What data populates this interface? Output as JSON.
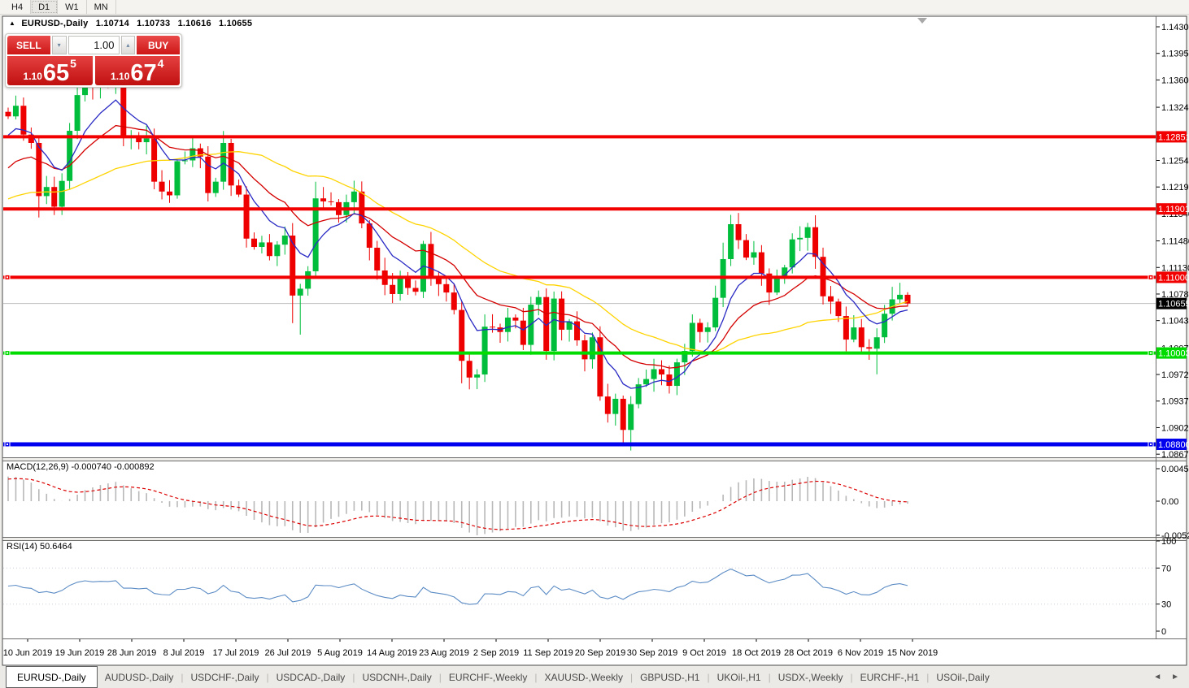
{
  "toolbar": {
    "timeframes": [
      {
        "label": "H4",
        "active": false
      },
      {
        "label": "D1",
        "active": true
      },
      {
        "label": "W1",
        "active": false
      },
      {
        "label": "MN",
        "active": false
      }
    ]
  },
  "header": {
    "symbol_title": "EURUSD-,Daily",
    "open": "1.10714",
    "high": "1.10733",
    "low": "1.10616",
    "close": "1.10655"
  },
  "trade_panel": {
    "sell_label": "SELL",
    "buy_label": "BUY",
    "volume": "1.00",
    "sell_price": {
      "prefix": "1.10",
      "big": "65",
      "sup": "5"
    },
    "buy_price": {
      "prefix": "1.10",
      "big": "67",
      "sup": "4"
    }
  },
  "price_axis": {
    "ticks": [
      "1.14300",
      "1.13950",
      "1.13600",
      "1.13240",
      "1.12540",
      "1.12190",
      "1.11840",
      "1.11480",
      "1.11130",
      "1.10780",
      "1.10430",
      "1.10070",
      "1.09720",
      "1.09370",
      "1.09020",
      "1.08670"
    ]
  },
  "time_axis": {
    "labels": [
      "10 Jun 2019",
      "19 Jun 2019",
      "28 Jun 2019",
      "8 Jul 2019",
      "17 Jul 2019",
      "26 Jul 2019",
      "5 Aug 2019",
      "14 Aug 2019",
      "23 Aug 2019",
      "2 Sep 2019",
      "11 Sep 2019",
      "20 Sep 2019",
      "30 Sep 2019",
      "9 Oct 2019",
      "18 Oct 2019",
      "28 Oct 2019",
      "6 Nov 2019",
      "15 Nov 2019"
    ]
  },
  "chart_data": {
    "type": "candlestick",
    "symbol": "EURUSD-",
    "timeframe": "Daily",
    "ylim": [
      1.0864,
      1.1443
    ],
    "current_price": {
      "value": 1.10655,
      "label": "1.10655"
    },
    "levels": [
      {
        "price": 1.12851,
        "label": "1.12851",
        "color": "#F20000",
        "thickness": 4,
        "handles": false
      },
      {
        "price": 1.11901,
        "label": "1.11901",
        "color": "#F20000",
        "thickness": 4,
        "handles": false
      },
      {
        "price": 1.11,
        "label": "1.11000",
        "color": "#F20000",
        "thickness": 4,
        "handles": true
      },
      {
        "price": 1.10003,
        "label": "1.10003",
        "color": "#00DC00",
        "thickness": 4,
        "handles": true
      },
      {
        "price": 1.088,
        "label": "1.08800",
        "color": "#0000EE",
        "thickness": 5,
        "handles": true
      }
    ],
    "closes": [
      1.1312,
      1.1326,
      1.1288,
      1.1277,
      1.1207,
      1.1219,
      1.1193,
      1.1227,
      1.1293,
      1.134,
      1.1362,
      1.135,
      1.1356,
      1.1355,
      1.1364,
      1.1285,
      1.1285,
      1.1278,
      1.1283,
      1.1226,
      1.1213,
      1.1208,
      1.1253,
      1.1254,
      1.127,
      1.1259,
      1.1211,
      1.1226,
      1.1277,
      1.1221,
      1.1209,
      1.1151,
      1.114,
      1.1146,
      1.1128,
      1.1143,
      1.1155,
      1.1076,
      1.1085,
      1.1108,
      1.1204,
      1.12,
      1.1199,
      1.1182,
      1.1199,
      1.1213,
      1.1171,
      1.1139,
      1.1109,
      1.109,
      1.1078,
      1.1099,
      1.1086,
      1.1081,
      1.1144,
      1.1101,
      1.1091,
      1.108,
      1.1057,
      1.099,
      1.0968,
      1.0972,
      1.1035,
      1.1034,
      1.1028,
      1.1047,
      1.1043,
      1.1011,
      1.1064,
      1.1074,
      1.1003,
      1.1072,
      1.1031,
      1.1042,
      1.1017,
      1.0992,
      1.1021,
      1.0943,
      1.092,
      1.094,
      1.0899,
      1.0933,
      1.0959,
      1.0966,
      1.0979,
      1.0972,
      1.0957,
      1.0988,
      1.1003,
      1.104,
      1.1028,
      1.1034,
      1.1073,
      1.1124,
      1.117,
      1.1149,
      1.1126,
      1.1133,
      1.1105,
      1.108,
      1.1099,
      1.1113,
      1.115,
      1.1152,
      1.1166,
      1.1127,
      1.1075,
      1.1068,
      1.1049,
      1.1018,
      1.1034,
      1.1008,
      1.1006,
      1.1021,
      1.1052,
      1.1071,
      1.1077,
      1.10655
    ]
  },
  "macd": {
    "name": "MACD(12,26,9)",
    "value_main": "-0.000740",
    "value_signal": "-0.000892",
    "ticks": [
      {
        "v": 0.004536,
        "label": "0.004536"
      },
      {
        "v": 0,
        "label": "0.00"
      },
      {
        "v": -0.005205,
        "label": "-0.005205"
      }
    ],
    "hist_color": "#B8B8B8",
    "signal_color": "#DC0000"
  },
  "rsi": {
    "name": "RSI(14)",
    "value": "50.6464",
    "ticks": [
      {
        "v": 100,
        "label": "100"
      },
      {
        "v": 70,
        "label": "70"
      },
      {
        "v": 30,
        "label": "30"
      },
      {
        "v": 0,
        "label": "0"
      }
    ],
    "levels": [
      70,
      30
    ],
    "color": "#5C8CC5"
  },
  "tabs": {
    "items": [
      {
        "label": "EURUSD-,Daily",
        "active": true
      },
      {
        "label": "AUDUSD-,Daily",
        "active": false
      },
      {
        "label": "USDCHF-,Daily",
        "active": false
      },
      {
        "label": "USDCAD-,Daily",
        "active": false
      },
      {
        "label": "USDCNH-,Daily",
        "active": false
      },
      {
        "label": "EURCHF-,Weekly",
        "active": false
      },
      {
        "label": "XAUUSD-,Weekly",
        "active": false
      },
      {
        "label": "GBPUSD-,H1",
        "active": false
      },
      {
        "label": "UKOil-,H1",
        "active": false
      },
      {
        "label": "USDX-,Weekly",
        "active": false
      },
      {
        "label": "EURCHF-,H1",
        "active": false
      },
      {
        "label": "USOil-,Daily",
        "active": false
      }
    ],
    "scroll_left": "◄",
    "scroll_right": "►"
  },
  "colors": {
    "bull": "#00BE3C",
    "bear": "#EE0000",
    "ma_fast": "#2929C4",
    "ma_mid": "#D40000",
    "ma_slow": "#FFD300",
    "current_price_line": "#BEBEBE",
    "pane_bg": "#FFFFFF",
    "frame": "#4A4A4A"
  }
}
